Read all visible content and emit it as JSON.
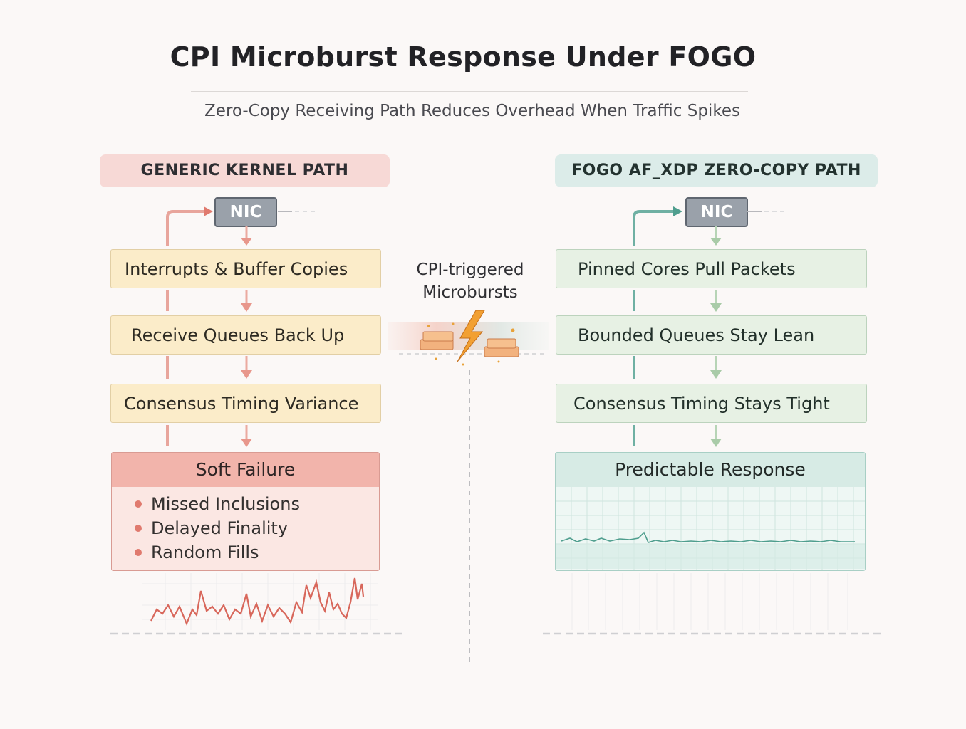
{
  "title": "CPI Microburst Response Under FOGO",
  "subtitle": "Zero-Copy Receiving Path Reduces Overhead When Traffic Spikes",
  "left": {
    "header": "GENERIC KERNEL PATH",
    "nic": "NIC",
    "steps": [
      "Interrupts & Buffer Copies",
      "Receive Queues Back Up",
      "Consensus Timing Variance"
    ],
    "outcome": {
      "title": "Soft Failure",
      "items": [
        "Missed Inclusions",
        "Delayed Finality",
        "Random Fills"
      ]
    },
    "accent": "#e07a6e"
  },
  "right": {
    "header": "FOGO AF_XDP ZERO-COPY PATH",
    "nic": "NIC",
    "steps": [
      "Pinned Cores Pull Packets",
      "Bounded Queues Stay Lean",
      "Consensus Timing Stays Tight"
    ],
    "outcome": {
      "title": "Predictable Response"
    },
    "accent": "#5fa89a"
  },
  "center": {
    "label_line1": "CPI-triggered",
    "label_line2": "Microbursts",
    "icon": "lightning-bolt-icon"
  }
}
